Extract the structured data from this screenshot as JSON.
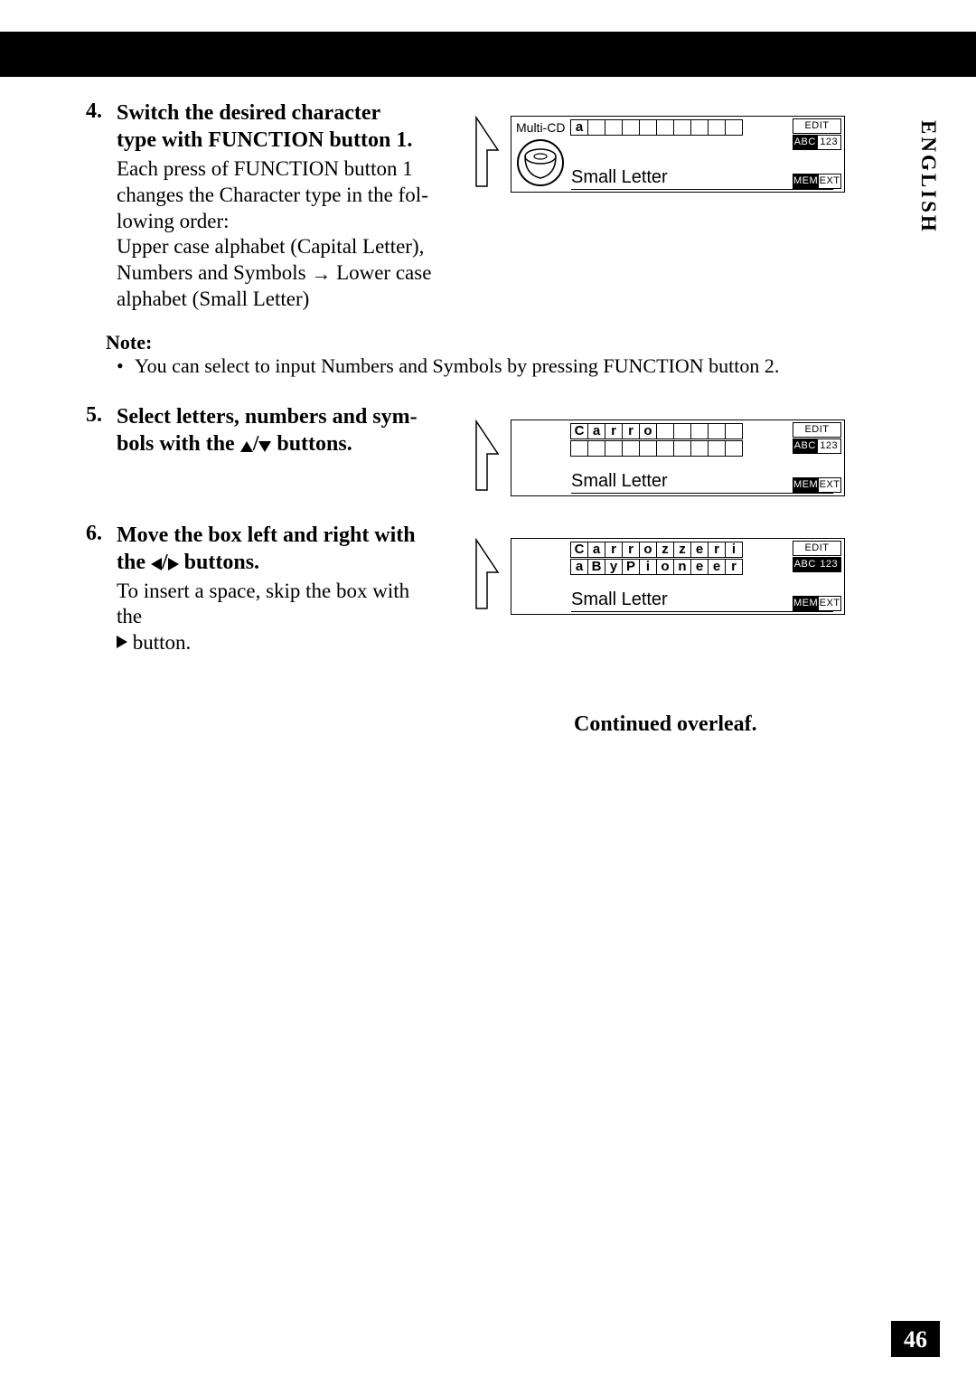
{
  "side_tab": "ENGLISH",
  "page_number": "46",
  "continued": "Continued overleaf.",
  "step4": {
    "num": "4.",
    "title_l1": "Switch the desired character",
    "title_l2": "type with FUNCTION button 1.",
    "desc_l1": "Each press of FUNCTION button 1",
    "desc_l2": "changes the Character type in the fol-",
    "desc_l3": "lowing order:",
    "desc_l4": "Upper case alphabet (Capital Letter),",
    "desc_l5_a": "Numbers and Symbols ",
    "desc_l5_b": " Lower case",
    "desc_l6": "alphabet (Small Letter)"
  },
  "note": {
    "title": "Note:",
    "item1": "You can select to input Numbers and Symbols by pressing FUNCTION button 2."
  },
  "step5": {
    "num": "5.",
    "title_l1": "Select letters, numbers and sym-",
    "title_l2_a": "bols with the ",
    "title_l2_b": " buttons."
  },
  "step6": {
    "num": "6.",
    "title_l1": "Move the box left and right with",
    "title_l2_a": "the ",
    "title_l2_b": " buttons.",
    "desc_l1": "To insert a space, skip the box with the",
    "desc_l2": " button."
  },
  "lcd_shared": {
    "mode": "Small Letter",
    "edit": "EDIT",
    "abc": "ABC",
    "n123": "123",
    "mem": "MEM",
    "ext": "EXT"
  },
  "lcd4": {
    "top_left": "Multi-CD",
    "row1": [
      "a",
      "",
      "",
      "",
      "",
      "",
      "",
      "",
      "",
      ""
    ]
  },
  "lcd5": {
    "row1": [
      "C",
      "a",
      "r",
      "r",
      "o",
      "",
      "",
      "",
      "",
      ""
    ],
    "row2": [
      "",
      "",
      "",
      "",
      "",
      "",
      "",
      "",
      "",
      ""
    ]
  },
  "lcd6": {
    "row1": [
      "C",
      "a",
      "r",
      "r",
      "o",
      "z",
      "z",
      "e",
      "r",
      "i"
    ],
    "row2": [
      "a",
      "B",
      "y",
      "P",
      "i",
      "o",
      "n",
      "e",
      "e",
      "r"
    ]
  }
}
